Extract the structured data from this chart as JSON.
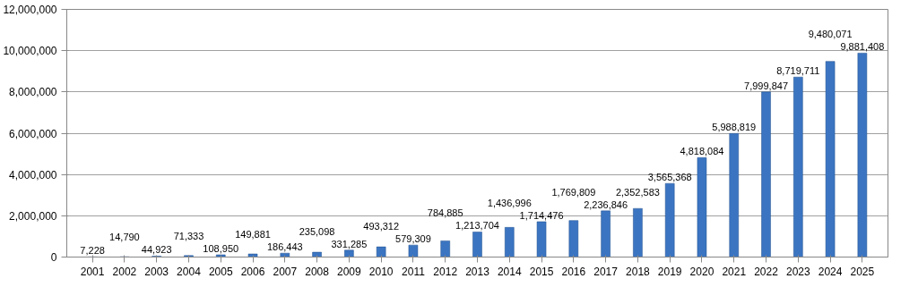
{
  "chart_data": {
    "type": "bar",
    "categories": [
      "2001",
      "2002",
      "2003",
      "2004",
      "2005",
      "2006",
      "2007",
      "2008",
      "2009",
      "2010",
      "2011",
      "2012",
      "2013",
      "2014",
      "2015",
      "2016",
      "2017",
      "2018",
      "2019",
      "2020",
      "2021",
      "2022",
      "2023",
      "2024",
      "2025"
    ],
    "values": [
      7228,
      14790,
      44923,
      71333,
      108950,
      149881,
      186443,
      235098,
      331285,
      493312,
      579309,
      784885,
      1213704,
      1436996,
      1714476,
      1769809,
      2236846,
      2352583,
      3565368,
      4818084,
      5988819,
      7999847,
      8719711,
      9480071,
      9881408
    ],
    "color": "#3b75c2",
    "ylim": [
      0,
      12000000
    ],
    "yticks": [
      {
        "value": 0,
        "label": "0"
      },
      {
        "value": 2000000,
        "label": "2,000,000"
      },
      {
        "value": 4000000,
        "label": "4,000,000"
      },
      {
        "value": 6000000,
        "label": "6,000,000"
      },
      {
        "value": 8000000,
        "label": "8,000,000"
      },
      {
        "value": 10000000,
        "label": "10,000,000"
      },
      {
        "value": 12000000,
        "label": "12,000,000"
      }
    ],
    "value_labels": [
      "7,228",
      "14,790",
      "44,923",
      "71,333",
      "108,950",
      "149,881",
      "186,443",
      "235,098",
      "331,285",
      "493,312",
      "579,309",
      "784,885",
      "1,213,704",
      "1,436,996",
      "1,714,476",
      "1,769,809",
      "2,236,846",
      "2,352,583",
      "3,565,368",
      "4,818,084",
      "5,988,819",
      "7,999,847",
      "8,719,711",
      "9,480,071",
      "9,881,408"
    ],
    "grid": "y",
    "data_labels": true
  }
}
